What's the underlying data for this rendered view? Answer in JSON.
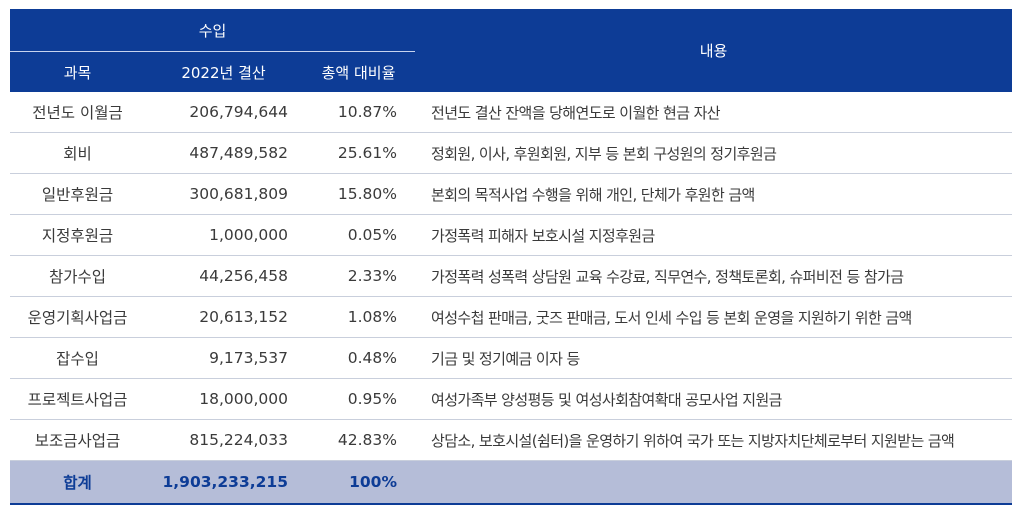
{
  "header": {
    "income_group": "수입",
    "col_subject": "과목",
    "col_amount": "2022년 결산",
    "col_ratio": "총액 대비율",
    "col_description": "내용"
  },
  "rows": [
    {
      "subject": "전년도 이월금",
      "amount": "206,794,644",
      "ratio": "10.87%",
      "description": "전년도 결산 잔액을 당해연도로 이월한 현금 자산"
    },
    {
      "subject": "회비",
      "amount": "487,489,582",
      "ratio": "25.61%",
      "description": "정회원, 이사, 후원회원, 지부 등 본회 구성원의 정기후원금"
    },
    {
      "subject": "일반후원금",
      "amount": "300,681,809",
      "ratio": "15.80%",
      "description": "본회의 목적사업 수행을 위해 개인, 단체가 후원한 금액"
    },
    {
      "subject": "지정후원금",
      "amount": "1,000,000",
      "ratio": "0.05%",
      "description": "가정폭력 피해자 보호시설 지정후원금"
    },
    {
      "subject": "참가수입",
      "amount": "44,256,458",
      "ratio": "2.33%",
      "description": "가정폭력 성폭력 상담원 교육 수강료, 직무연수, 정책토론회, 슈퍼비전 등 참가금"
    },
    {
      "subject": "운영기획사업금",
      "amount": "20,613,152",
      "ratio": "1.08%",
      "description": "여성수첩 판매금, 굿즈 판매금, 도서 인세 수입 등 본회 운영을 지원하기 위한 금액"
    },
    {
      "subject": "잡수입",
      "amount": "9,173,537",
      "ratio": "0.48%",
      "description": "기금 및 정기예금 이자 등"
    },
    {
      "subject": "프로젝트사업금",
      "amount": "18,000,000",
      "ratio": "0.95%",
      "description": "여성가족부 양성평등 및 여성사회참여확대 공모사업 지원금"
    },
    {
      "subject": "보조금사업금",
      "amount": "815,224,033",
      "ratio": "42.83%",
      "description": "상담소, 보호시설(쉼터)을 운영하기 위하여 국가 또는 지방자치단체로부터 지원받는 금액"
    }
  ],
  "total": {
    "subject": "합계",
    "amount": "1,903,233,215",
    "ratio": "100%"
  },
  "colors": {
    "header_bg": "#0d3c96",
    "total_bg": "#b5bdd8",
    "total_text": "#0d3c96"
  }
}
